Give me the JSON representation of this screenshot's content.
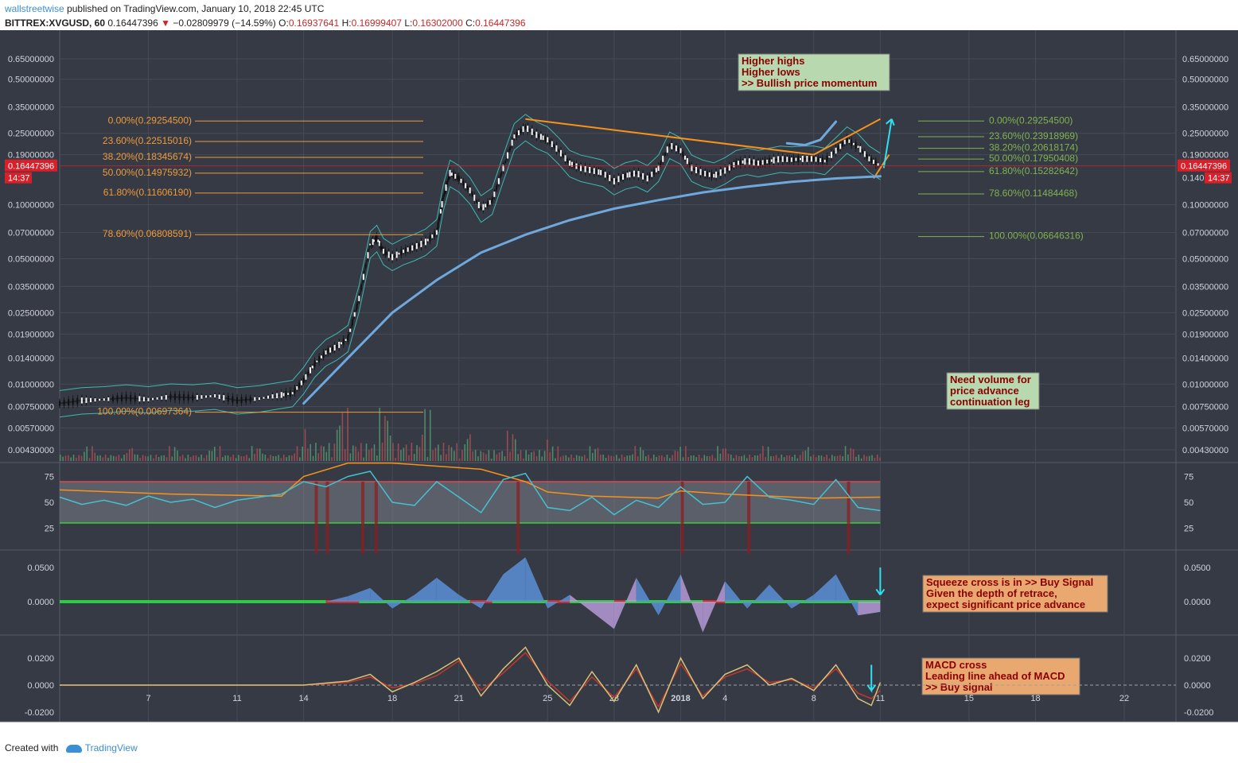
{
  "header": {
    "user": "wallstreetwise",
    "published": "published on TradingView.com, January 10, 2018 22:45 UTC",
    "symbol": "BITTREX:XVGUSD, 60",
    "last": "0.16447396",
    "arrow": "▼",
    "change": "−0.02809979 (−14.59%)",
    "o_label": "O:",
    "o": "0.16937641",
    "h_label": "H:",
    "h": "0.16999407",
    "l_label": "L:",
    "l": "0.16302000",
    "c_label": "C:",
    "c": "0.16447396"
  },
  "footer": {
    "created_with": "Created with",
    "brand": "TradingView"
  },
  "colors": {
    "chart_bg": "#363a45",
    "grid": "#454a56",
    "axis_text": "#d0d3da",
    "fib_left": "#ef9b3a",
    "fib_right": "#7fb34f",
    "trend_orange": "#f7931a",
    "curve_blue": "#6fa8dc",
    "arrow_cyan": "#2fe0f0",
    "price_red": "#d8202a",
    "bb": "#3fb8b0",
    "rsi_line": "#45c1d0",
    "rsi_band_top": "#e0494c",
    "rsi_band_bottom": "#39d03a",
    "squeeze_green": "#2ecc40",
    "squeeze_red": "#cc2e2e",
    "mom_blue": "#5b8fd6",
    "mom_purple": "#b59ad6",
    "macd": "#d8c27a",
    "signal": "#c0392b"
  },
  "chart_data": {
    "type": "candlestick",
    "price_scale": "log",
    "price_axis_ticks": [
      "0.65000000",
      "0.50000000",
      "0.35000000",
      "0.25000000",
      "0.19000000",
      "0.10000000",
      "0.07000000",
      "0.05000000",
      "0.03500000",
      "0.02500000",
      "0.01900000",
      "0.01400000",
      "0.01000000",
      "0.00750000",
      "0.00570000",
      "0.00430000"
    ],
    "price_axis_values": [
      0.65,
      0.5,
      0.35,
      0.25,
      0.19,
      0.1,
      0.07,
      0.05,
      0.035,
      0.025,
      0.019,
      0.014,
      0.01,
      0.0075,
      0.0057,
      0.0043
    ],
    "right_marker_value": "0.16447396",
    "right_marker_time": "14:37",
    "right_axis_partial": "0.140",
    "left_marker_value": "0.16447396",
    "left_marker_time": "14:37",
    "x_axis_labels": [
      "7",
      "11",
      "14",
      "18",
      "21",
      "25",
      "28",
      "2018",
      "4",
      "8",
      "11",
      "15",
      "18",
      "22"
    ],
    "x_axis_positions": [
      7,
      11,
      14,
      18,
      21,
      25,
      28,
      31,
      33,
      37,
      40,
      44,
      47,
      51
    ],
    "price_path": [
      [
        3,
        0.0078
      ],
      [
        4,
        0.0081
      ],
      [
        5,
        0.0082
      ],
      [
        6,
        0.0084
      ],
      [
        7,
        0.0082
      ],
      [
        8,
        0.0085
      ],
      [
        9,
        0.0084
      ],
      [
        10,
        0.0086
      ],
      [
        11,
        0.0081
      ],
      [
        12,
        0.0083
      ],
      [
        13,
        0.0087
      ],
      [
        13.5,
        0.0089
      ],
      [
        14,
        0.0105
      ],
      [
        14.5,
        0.013
      ],
      [
        15,
        0.015
      ],
      [
        15.5,
        0.0162
      ],
      [
        16,
        0.018
      ],
      [
        16.5,
        0.03
      ],
      [
        17,
        0.06
      ],
      [
        17.3,
        0.065
      ],
      [
        17.6,
        0.055
      ],
      [
        18,
        0.051
      ],
      [
        18.5,
        0.055
      ],
      [
        19,
        0.058
      ],
      [
        19.5,
        0.062
      ],
      [
        20,
        0.07
      ],
      [
        20.3,
        0.11
      ],
      [
        20.6,
        0.15
      ],
      [
        21,
        0.14
      ],
      [
        21.5,
        0.12
      ],
      [
        22,
        0.095
      ],
      [
        22.5,
        0.105
      ],
      [
        23,
        0.16
      ],
      [
        23.5,
        0.24
      ],
      [
        24,
        0.27
      ],
      [
        24.5,
        0.245
      ],
      [
        25,
        0.23
      ],
      [
        25.5,
        0.2
      ],
      [
        26,
        0.17
      ],
      [
        26.5,
        0.16
      ],
      [
        27,
        0.155
      ],
      [
        27.5,
        0.15
      ],
      [
        28,
        0.135
      ],
      [
        28.5,
        0.145
      ],
      [
        29,
        0.15
      ],
      [
        29.5,
        0.14
      ],
      [
        30,
        0.16
      ],
      [
        30.5,
        0.215
      ],
      [
        31,
        0.2
      ],
      [
        31.5,
        0.16
      ],
      [
        32,
        0.15
      ],
      [
        32.5,
        0.145
      ],
      [
        33,
        0.155
      ],
      [
        33.5,
        0.17
      ],
      [
        34,
        0.175
      ],
      [
        34.5,
        0.17
      ],
      [
        35,
        0.175
      ],
      [
        35.5,
        0.18
      ],
      [
        36,
        0.178
      ],
      [
        36.5,
        0.18
      ],
      [
        37,
        0.18
      ],
      [
        37.5,
        0.175
      ],
      [
        38,
        0.2
      ],
      [
        38.5,
        0.23
      ],
      [
        39,
        0.21
      ],
      [
        39.5,
        0.18
      ],
      [
        40,
        0.164
      ]
    ],
    "fib_left": {
      "levels": [
        {
          "label": "0.00%(0.29254500)",
          "value": 0.292545
        },
        {
          "label": "23.60%(0.22515016)",
          "value": 0.22515016
        },
        {
          "label": "38.20%(0.18345674)",
          "value": 0.18345674
        },
        {
          "label": "50.00%(0.14975932)",
          "value": 0.14975932
        },
        {
          "label": "61.80%(0.11606190)",
          "value": 0.1160619
        },
        {
          "label": "78.60%(0.06808591)",
          "value": 0.06808591
        },
        {
          "label": "100.00%(0.00697364)",
          "value": 0.00697364
        }
      ]
    },
    "fib_right": {
      "levels": [
        {
          "label": "0.00%(0.29254500)",
          "value": 0.292545
        },
        {
          "label": "23.60%(0.23918969)",
          "value": 0.23918969
        },
        {
          "label": "38.20%(0.20618174)",
          "value": 0.20618174
        },
        {
          "label": "50.00%(0.17950408)",
          "value": 0.17950408
        },
        {
          "label": "61.80%(0.15282642)",
          "value": 0.15282642
        },
        {
          "label": "78.60%(0.11484468)",
          "value": 0.11484468
        },
        {
          "label": "100.00%(0.06646316)",
          "value": 0.06646316
        }
      ]
    },
    "trendline_top": [
      [
        24,
        0.3
      ],
      [
        37,
        0.19
      ]
    ],
    "wedge_upper": [
      [
        37,
        0.19
      ],
      [
        40,
        0.3
      ]
    ],
    "wedge_lower": [
      [
        39.7,
        0.14
      ],
      [
        40.4,
        0.19
      ]
    ],
    "support_curve": [
      [
        14,
        0.0078
      ],
      [
        16,
        0.014
      ],
      [
        18,
        0.025
      ],
      [
        20,
        0.038
      ],
      [
        22,
        0.054
      ],
      [
        24,
        0.068
      ],
      [
        26,
        0.082
      ],
      [
        28,
        0.095
      ],
      [
        30,
        0.106
      ],
      [
        32,
        0.117
      ],
      [
        34,
        0.126
      ],
      [
        36,
        0.134
      ],
      [
        38,
        0.14
      ],
      [
        40,
        0.144
      ]
    ],
    "mini_curve": [
      [
        35.8,
        0.22
      ],
      [
        36.6,
        0.215
      ],
      [
        37.3,
        0.23
      ],
      [
        38,
        0.29
      ]
    ],
    "rsi": {
      "ticks": [
        "75",
        "50",
        "25"
      ],
      "tick_values": [
        75,
        50,
        25
      ],
      "upper_band": 70,
      "lower_band": 30,
      "series": [
        [
          3,
          55
        ],
        [
          4,
          48
        ],
        [
          5,
          52
        ],
        [
          6,
          47
        ],
        [
          7,
          56
        ],
        [
          8,
          50
        ],
        [
          9,
          53
        ],
        [
          10,
          45
        ],
        [
          11,
          52
        ],
        [
          12,
          55
        ],
        [
          13,
          58
        ],
        [
          14,
          70
        ],
        [
          15,
          65
        ],
        [
          16,
          75
        ],
        [
          17,
          80
        ],
        [
          18,
          50
        ],
        [
          19,
          47
        ],
        [
          20,
          70
        ],
        [
          21,
          55
        ],
        [
          22,
          40
        ],
        [
          23,
          72
        ],
        [
          24,
          78
        ],
        [
          25,
          45
        ],
        [
          26,
          42
        ],
        [
          27,
          55
        ],
        [
          28,
          38
        ],
        [
          29,
          52
        ],
        [
          30,
          45
        ],
        [
          31,
          65
        ],
        [
          32,
          48
        ],
        [
          33,
          50
        ],
        [
          34,
          75
        ],
        [
          35,
          55
        ],
        [
          36,
          52
        ],
        [
          37,
          48
        ],
        [
          38,
          72
        ],
        [
          39,
          45
        ],
        [
          40,
          42
        ]
      ],
      "avg_line": [
        [
          3,
          62
        ],
        [
          8,
          58
        ],
        [
          13,
          56
        ],
        [
          14,
          75
        ],
        [
          16,
          88
        ],
        [
          18,
          88
        ],
        [
          20,
          85
        ],
        [
          22,
          82
        ],
        [
          24,
          70
        ],
        [
          25,
          60
        ],
        [
          27,
          56
        ],
        [
          30,
          54
        ],
        [
          31,
          61
        ],
        [
          33,
          58
        ],
        [
          37,
          54
        ],
        [
          40,
          55
        ]
      ]
    },
    "squeeze": {
      "ticks": [
        "0.0500",
        "0.0000"
      ],
      "tick_values": [
        0.05,
        0.0
      ],
      "momentum": [
        [
          3,
          0
        ],
        [
          15,
          0
        ],
        [
          16,
          0.008
        ],
        [
          17,
          0.02
        ],
        [
          18,
          -0.01
        ],
        [
          19,
          0.01
        ],
        [
          20,
          0.035
        ],
        [
          21,
          0.01
        ],
        [
          22,
          -0.01
        ],
        [
          23,
          0.04
        ],
        [
          24,
          0.065
        ],
        [
          25,
          -0.01
        ],
        [
          26,
          0.01
        ],
        [
          27,
          -0.015
        ],
        [
          28,
          -0.04
        ],
        [
          29,
          0.035
        ],
        [
          30,
          -0.02
        ],
        [
          31,
          0.04
        ],
        [
          32,
          -0.045
        ],
        [
          33,
          0.03
        ],
        [
          34,
          -0.01
        ],
        [
          35,
          0.025
        ],
        [
          36,
          -0.01
        ],
        [
          37,
          0.01
        ],
        [
          38,
          0.04
        ],
        [
          39,
          -0.02
        ],
        [
          40,
          -0.015
        ]
      ]
    },
    "macd": {
      "ticks": [
        "0.0200",
        "0.0000",
        "-0.0200"
      ],
      "tick_values": [
        0.02,
        0.0,
        -0.02
      ],
      "macd_line": [
        [
          3,
          0
        ],
        [
          14,
          0
        ],
        [
          16,
          0.003
        ],
        [
          17,
          0.008
        ],
        [
          18,
          -0.005
        ],
        [
          19,
          0.002
        ],
        [
          20,
          0.01
        ],
        [
          21,
          0.02
        ],
        [
          22,
          -0.008
        ],
        [
          23,
          0.012
        ],
        [
          24,
          0.028
        ],
        [
          25,
          0.0
        ],
        [
          26,
          -0.015
        ],
        [
          27,
          0.01
        ],
        [
          28,
          -0.012
        ],
        [
          29,
          0.015
        ],
        [
          30,
          -0.02
        ],
        [
          31,
          0.02
        ],
        [
          32,
          -0.01
        ],
        [
          33,
          0.008
        ],
        [
          34,
          0.015
        ],
        [
          35,
          0.0
        ],
        [
          36,
          0.005
        ],
        [
          37,
          -0.004
        ],
        [
          38,
          0.015
        ],
        [
          39,
          -0.01
        ],
        [
          39.6,
          -0.015
        ],
        [
          40,
          0.002
        ]
      ],
      "signal_line": [
        [
          3,
          0
        ],
        [
          14,
          0
        ],
        [
          16,
          0.002
        ],
        [
          17,
          0.006
        ],
        [
          18,
          -0.002
        ],
        [
          19,
          0.001
        ],
        [
          20,
          0.007
        ],
        [
          21,
          0.018
        ],
        [
          22,
          -0.004
        ],
        [
          23,
          0.009
        ],
        [
          24,
          0.024
        ],
        [
          25,
          0.003
        ],
        [
          26,
          -0.012
        ],
        [
          27,
          0.006
        ],
        [
          28,
          -0.009
        ],
        [
          29,
          0.012
        ],
        [
          30,
          -0.016
        ],
        [
          31,
          0.016
        ],
        [
          32,
          -0.008
        ],
        [
          33,
          0.006
        ],
        [
          34,
          0.012
        ],
        [
          35,
          0.002
        ],
        [
          36,
          0.004
        ],
        [
          37,
          -0.002
        ],
        [
          38,
          0.012
        ],
        [
          39,
          -0.006
        ],
        [
          39.6,
          -0.01
        ],
        [
          40,
          -0.004
        ]
      ]
    }
  },
  "annotations": {
    "momentum": [
      "Higher highs",
      "Higher lows",
      ">> Bullish price momentum"
    ],
    "volume": [
      "Need volume for",
      "price advance",
      "continuation leg"
    ],
    "squeeze": [
      "Squeeze cross is in >> Buy Signal",
      "Given the depth of retrace,",
      "expect significant price advance"
    ],
    "macd": [
      "MACD cross",
      "Leading line ahead of MACD",
      ">> Buy signal"
    ]
  }
}
